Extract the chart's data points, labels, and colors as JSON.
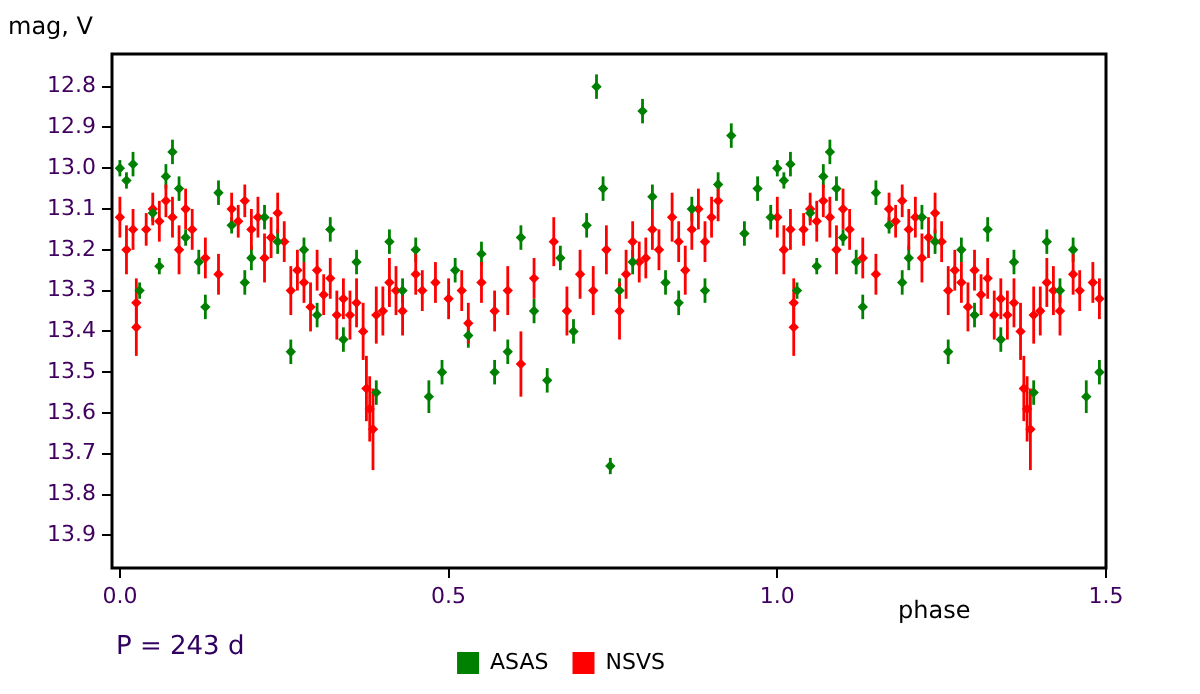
{
  "chart_data": {
    "type": "scatter",
    "xlabel": "phase",
    "ylabel": "mag, V",
    "annotations": [
      "P = 243 d"
    ],
    "xlim": [
      -0.012,
      1.5
    ],
    "ylim": [
      13.98,
      12.72
    ],
    "xticks": [
      {
        "value": 0,
        "label": "0.0"
      },
      {
        "value": 0.5,
        "label": "0.5"
      },
      {
        "value": 1,
        "label": "1.0"
      },
      {
        "value": 1.5,
        "label": "1.5"
      }
    ],
    "yticks": [
      12.8,
      12.9,
      {
        "value": 13,
        "label": "13.0"
      },
      13.1,
      13.2,
      13.3,
      13.4,
      13.5,
      13.6,
      13.7,
      13.8,
      13.9
    ],
    "grid": false,
    "legend": "bottom",
    "marker": "diamond",
    "series": [
      {
        "name": "ASAS",
        "color": "#008000",
        "x": [
          0,
          0.01,
          0.02,
          0.03,
          0.05,
          0.06,
          0.07,
          0.08,
          0.09,
          0.1,
          0.12,
          0.13,
          0.15,
          0.17,
          0.19,
          0.2,
          0.22,
          0.24,
          0.26,
          0.28,
          0.3,
          0.32,
          0.34,
          0.36,
          0.39,
          0.41,
          0.43,
          0.45,
          0.47,
          0.49,
          0.51,
          0.53,
          0.55,
          0.57,
          0.59,
          0.61,
          0.63,
          0.65,
          0.67,
          0.69,
          0.71,
          0.725,
          0.735,
          0.746,
          0.76,
          0.78,
          0.795,
          0.81,
          0.83,
          0.85,
          0.87,
          0.89,
          0.91,
          0.93,
          0.95,
          0.97,
          0.99,
          1,
          1.01,
          1.02,
          1.03,
          1.05,
          1.06,
          1.07,
          1.08,
          1.09,
          1.1,
          1.12,
          1.13,
          1.15,
          1.17,
          1.19,
          1.2,
          1.22,
          1.24,
          1.26,
          1.28,
          1.3,
          1.32,
          1.34,
          1.36,
          1.39,
          1.41,
          1.43,
          1.45,
          1.47,
          1.49
        ],
        "values": [
          13,
          13.03,
          12.99,
          13.3,
          13.11,
          13.24,
          13.02,
          12.96,
          13.05,
          13.17,
          13.23,
          13.34,
          13.06,
          13.14,
          13.28,
          13.22,
          13.12,
          13.18,
          13.45,
          13.2,
          13.36,
          13.15,
          13.42,
          13.23,
          13.55,
          13.18,
          13.3,
          13.2,
          13.56,
          13.5,
          13.25,
          13.41,
          13.21,
          13.5,
          13.45,
          13.17,
          13.35,
          13.52,
          13.22,
          13.4,
          13.14,
          12.8,
          13.05,
          13.73,
          13.3,
          13.23,
          12.86,
          13.07,
          13.28,
          13.33,
          13.1,
          13.3,
          13.04,
          12.92,
          13.16,
          13.05,
          13.12,
          13,
          13.03,
          12.99,
          13.3,
          13.11,
          13.24,
          13.02,
          12.96,
          13.05,
          13.17,
          13.23,
          13.34,
          13.06,
          13.14,
          13.28,
          13.22,
          13.12,
          13.18,
          13.45,
          13.2,
          13.36,
          13.15,
          13.42,
          13.23,
          13.55,
          13.18,
          13.3,
          13.2,
          13.56,
          13.5
        ],
        "errors": [
          0.02,
          0.02,
          0.03,
          0.02,
          0.02,
          0.02,
          0.03,
          0.03,
          0.03,
          0.02,
          0.03,
          0.03,
          0.03,
          0.02,
          0.03,
          0.03,
          0.03,
          0.03,
          0.03,
          0.03,
          0.03,
          0.03,
          0.03,
          0.03,
          0.03,
          0.03,
          0.03,
          0.03,
          0.04,
          0.03,
          0.03,
          0.03,
          0.03,
          0.03,
          0.03,
          0.03,
          0.03,
          0.03,
          0.03,
          0.03,
          0.03,
          0.03,
          0.03,
          0.02,
          0.03,
          0.03,
          0.03,
          0.03,
          0.03,
          0.03,
          0.03,
          0.03,
          0.03,
          0.03,
          0.03,
          0.03,
          0.03,
          0.02,
          0.02,
          0.03,
          0.02,
          0.02,
          0.02,
          0.03,
          0.03,
          0.03,
          0.02,
          0.03,
          0.03,
          0.03,
          0.02,
          0.03,
          0.03,
          0.03,
          0.03,
          0.03,
          0.03,
          0.03,
          0.03,
          0.03,
          0.03,
          0.03,
          0.03,
          0.03,
          0.03,
          0.04,
          0.03
        ]
      },
      {
        "name": "NSVS",
        "color": "#ff0000",
        "x": [
          0,
          0.01,
          0.02,
          0.025,
          0.025,
          0.04,
          0.05,
          0.06,
          0.07,
          0.08,
          0.09,
          0.1,
          0.11,
          0.13,
          0.15,
          0.17,
          0.18,
          0.19,
          0.2,
          0.21,
          0.22,
          0.23,
          0.24,
          0.25,
          0.26,
          0.27,
          0.28,
          0.29,
          0.3,
          0.31,
          0.32,
          0.33,
          0.34,
          0.35,
          0.36,
          0.37,
          0.375,
          0.38,
          0.385,
          0.39,
          0.4,
          0.41,
          0.42,
          0.43,
          0.45,
          0.46,
          0.48,
          0.5,
          0.52,
          0.53,
          0.55,
          0.57,
          0.59,
          0.61,
          0.63,
          0.66,
          0.68,
          0.7,
          0.72,
          0.74,
          0.76,
          0.77,
          0.78,
          0.79,
          0.8,
          0.81,
          0.82,
          0.84,
          0.85,
          0.86,
          0.87,
          0.88,
          0.89,
          0.9,
          0.91,
          1,
          1.01,
          1.02,
          1.025,
          1.025,
          1.04,
          1.05,
          1.06,
          1.07,
          1.08,
          1.09,
          1.1,
          1.11,
          1.13,
          1.15,
          1.17,
          1.18,
          1.19,
          1.2,
          1.21,
          1.22,
          1.23,
          1.24,
          1.25,
          1.26,
          1.27,
          1.28,
          1.29,
          1.3,
          1.31,
          1.32,
          1.33,
          1.34,
          1.35,
          1.36,
          1.37,
          1.375,
          1.38,
          1.385,
          1.39,
          1.4,
          1.41,
          1.42,
          1.43,
          1.45,
          1.46,
          1.48,
          1.49
        ],
        "values": [
          13.12,
          13.2,
          13.15,
          13.33,
          13.39,
          13.15,
          13.1,
          13.13,
          13.08,
          13.12,
          13.2,
          13.1,
          13.15,
          13.22,
          13.26,
          13.1,
          13.13,
          13.08,
          13.15,
          13.12,
          13.22,
          13.17,
          13.11,
          13.18,
          13.3,
          13.25,
          13.28,
          13.34,
          13.25,
          13.31,
          13.27,
          13.36,
          13.32,
          13.36,
          13.33,
          13.4,
          13.54,
          13.59,
          13.64,
          13.36,
          13.35,
          13.28,
          13.3,
          13.35,
          13.26,
          13.3,
          13.28,
          13.32,
          13.3,
          13.38,
          13.28,
          13.35,
          13.3,
          13.48,
          13.27,
          13.18,
          13.35,
          13.26,
          13.3,
          13.2,
          13.35,
          13.26,
          13.18,
          13.23,
          13.22,
          13.15,
          13.2,
          13.12,
          13.18,
          13.25,
          13.15,
          13.1,
          13.18,
          13.12,
          13.08,
          13.12,
          13.2,
          13.15,
          13.33,
          13.39,
          13.15,
          13.1,
          13.13,
          13.08,
          13.12,
          13.2,
          13.1,
          13.15,
          13.22,
          13.26,
          13.1,
          13.13,
          13.08,
          13.15,
          13.12,
          13.22,
          13.17,
          13.11,
          13.18,
          13.3,
          13.25,
          13.28,
          13.34,
          13.25,
          13.31,
          13.27,
          13.36,
          13.32,
          13.36,
          13.33,
          13.4,
          13.54,
          13.59,
          13.64,
          13.36,
          13.35,
          13.28,
          13.3,
          13.35,
          13.26,
          13.3,
          13.28,
          13.32
        ],
        "errors": [
          0.05,
          0.06,
          0.05,
          0.06,
          0.07,
          0.04,
          0.04,
          0.05,
          0.04,
          0.05,
          0.06,
          0.05,
          0.05,
          0.05,
          0.05,
          0.04,
          0.04,
          0.04,
          0.05,
          0.05,
          0.06,
          0.05,
          0.05,
          0.05,
          0.06,
          0.05,
          0.05,
          0.06,
          0.05,
          0.05,
          0.05,
          0.06,
          0.05,
          0.06,
          0.06,
          0.07,
          0.08,
          0.08,
          0.1,
          0.07,
          0.06,
          0.06,
          0.06,
          0.06,
          0.05,
          0.05,
          0.05,
          0.05,
          0.05,
          0.05,
          0.05,
          0.05,
          0.06,
          0.08,
          0.05,
          0.06,
          0.06,
          0.06,
          0.06,
          0.06,
          0.07,
          0.06,
          0.05,
          0.05,
          0.05,
          0.05,
          0.05,
          0.06,
          0.05,
          0.06,
          0.05,
          0.05,
          0.05,
          0.05,
          0.05,
          0.05,
          0.06,
          0.05,
          0.06,
          0.07,
          0.04,
          0.04,
          0.05,
          0.04,
          0.05,
          0.06,
          0.05,
          0.05,
          0.05,
          0.05,
          0.04,
          0.04,
          0.04,
          0.05,
          0.05,
          0.06,
          0.05,
          0.05,
          0.05,
          0.06,
          0.05,
          0.05,
          0.06,
          0.05,
          0.05,
          0.05,
          0.06,
          0.05,
          0.06,
          0.06,
          0.07,
          0.08,
          0.08,
          0.1,
          0.07,
          0.06,
          0.06,
          0.06,
          0.06,
          0.05,
          0.05,
          0.05,
          0.05
        ]
      }
    ]
  }
}
